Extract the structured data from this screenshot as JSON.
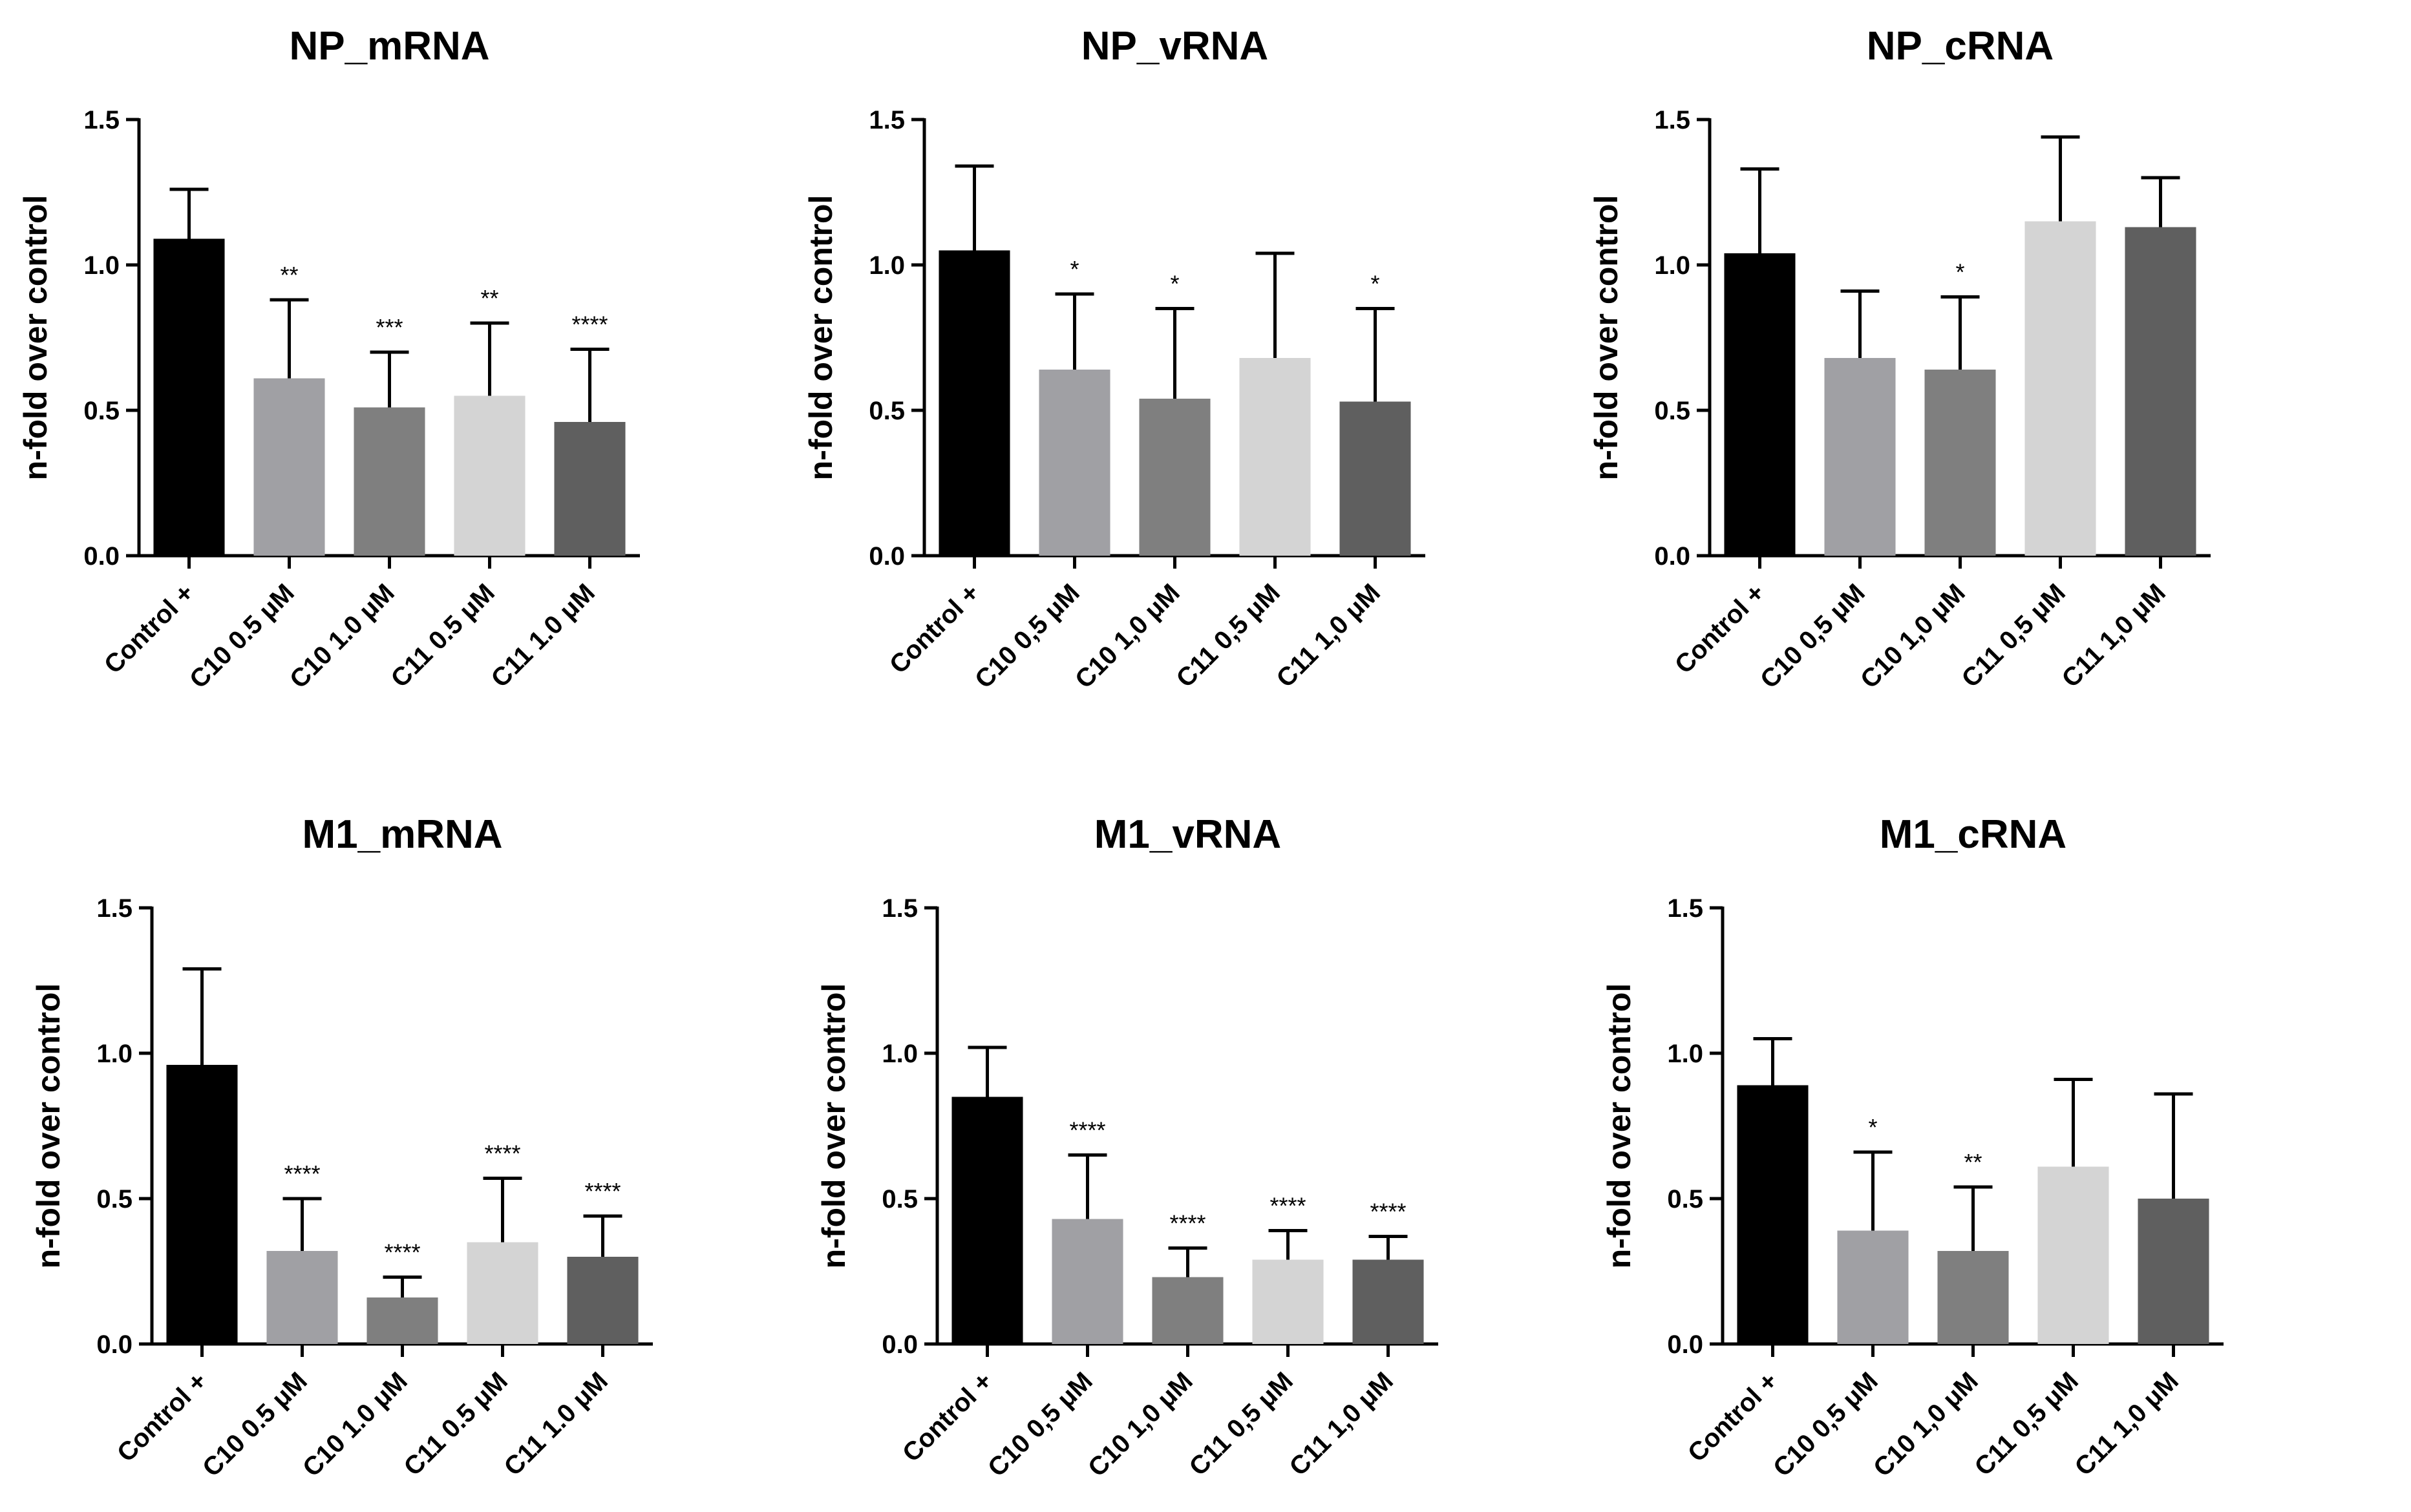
{
  "chart_data": [
    {
      "type": "bar",
      "title": "NP_mRNA",
      "xlabel": "",
      "ylabel": "n-fold over control",
      "ylim": [
        0,
        1.5
      ],
      "yticks": [
        "0.0",
        "0.5",
        "1.0",
        "1.5"
      ],
      "categories": [
        "Control +",
        "C10 0.5 μM",
        "C10 1.0 μM",
        "C11 0.5 μM",
        "C11 1.0 μM"
      ],
      "values": [
        1.09,
        0.61,
        0.51,
        0.55,
        0.46
      ],
      "errors": [
        0.17,
        0.27,
        0.19,
        0.25,
        0.25
      ],
      "annotations": [
        "",
        "**",
        "***",
        "**",
        "****"
      ],
      "colors": [
        "#000000",
        "#a0a0a4",
        "#7f7f7f",
        "#d4d4d4",
        "#5f5f5f"
      ]
    },
    {
      "type": "bar",
      "title": "NP_vRNA",
      "xlabel": "",
      "ylabel": "n-fold over control",
      "ylim": [
        0,
        1.5
      ],
      "yticks": [
        "0.0",
        "0.5",
        "1.0",
        "1.5"
      ],
      "categories": [
        "Control +",
        "C10 0,5 μM",
        "C10 1,0 μM",
        "C11 0,5 μM",
        "C11 1,0 μM"
      ],
      "values": [
        1.05,
        0.64,
        0.54,
        0.68,
        0.53
      ],
      "errors": [
        0.29,
        0.26,
        0.31,
        0.36,
        0.32
      ],
      "annotations": [
        "",
        "*",
        "*",
        "",
        "*"
      ],
      "colors": [
        "#000000",
        "#a0a0a4",
        "#7f7f7f",
        "#d4d4d4",
        "#5f5f5f"
      ]
    },
    {
      "type": "bar",
      "title": "NP_cRNA",
      "xlabel": "",
      "ylabel": "n-fold over control",
      "ylim": [
        0,
        1.5
      ],
      "yticks": [
        "0.0",
        "0.5",
        "1.0",
        "1.5"
      ],
      "categories": [
        "Control +",
        "C10 0,5 μM",
        "C10 1,0 μM",
        "C11 0,5 μM",
        "C11 1,0 μM"
      ],
      "values": [
        1.04,
        0.68,
        0.64,
        1.15,
        1.13
      ],
      "errors": [
        0.29,
        0.23,
        0.25,
        0.29,
        0.17
      ],
      "annotations": [
        "",
        "",
        "*",
        "",
        ""
      ],
      "colors": [
        "#000000",
        "#a0a0a4",
        "#7f7f7f",
        "#d4d4d4",
        "#5f5f5f"
      ]
    },
    {
      "type": "bar",
      "title": "M1_mRNA",
      "xlabel": "",
      "ylabel": "n-fold over control",
      "ylim": [
        0,
        1.5
      ],
      "yticks": [
        "0.0",
        "0.5",
        "1.0",
        "1.5"
      ],
      "categories": [
        "Control +",
        "C10 0.5 μM",
        "C10 1.0 μM",
        "C11 0.5 μM",
        "C11 1.0 μM"
      ],
      "values": [
        0.96,
        0.32,
        0.16,
        0.35,
        0.3
      ],
      "errors": [
        0.33,
        0.18,
        0.07,
        0.22,
        0.14
      ],
      "annotations": [
        "",
        "****",
        "****",
        "****",
        "****"
      ],
      "colors": [
        "#000000",
        "#a0a0a4",
        "#7f7f7f",
        "#d4d4d4",
        "#5f5f5f"
      ]
    },
    {
      "type": "bar",
      "title": "M1_vRNA",
      "xlabel": "",
      "ylabel": "n-fold over control",
      "ylim": [
        0,
        1.5
      ],
      "yticks": [
        "0.0",
        "0.5",
        "1.0",
        "1.5"
      ],
      "categories": [
        "Control +",
        "C10 0,5 μM",
        "C10 1,0 μM",
        "C11 0,5 μM",
        "C11 1,0 μM"
      ],
      "values": [
        0.85,
        0.43,
        0.23,
        0.29,
        0.29
      ],
      "errors": [
        0.17,
        0.22,
        0.1,
        0.1,
        0.08
      ],
      "annotations": [
        "",
        "****",
        "****",
        "****",
        "****"
      ],
      "colors": [
        "#000000",
        "#a0a0a4",
        "#7f7f7f",
        "#d4d4d4",
        "#5f5f5f"
      ]
    },
    {
      "type": "bar",
      "title": "M1_cRNA",
      "xlabel": "",
      "ylabel": "n-fold over control",
      "ylim": [
        0,
        1.5
      ],
      "yticks": [
        "0.0",
        "0.5",
        "1.0",
        "1.5"
      ],
      "categories": [
        "Control +",
        "C10 0,5 μM",
        "C10 1,0 μM",
        "C11 0,5 μM",
        "C11 1,0 μM"
      ],
      "values": [
        0.89,
        0.39,
        0.32,
        0.61,
        0.5
      ],
      "errors": [
        0.16,
        0.27,
        0.22,
        0.3,
        0.36
      ],
      "annotations": [
        "",
        "*",
        "**",
        "",
        ""
      ],
      "colors": [
        "#000000",
        "#a0a0a4",
        "#7f7f7f",
        "#d4d4d4",
        "#5f5f5f"
      ]
    }
  ]
}
